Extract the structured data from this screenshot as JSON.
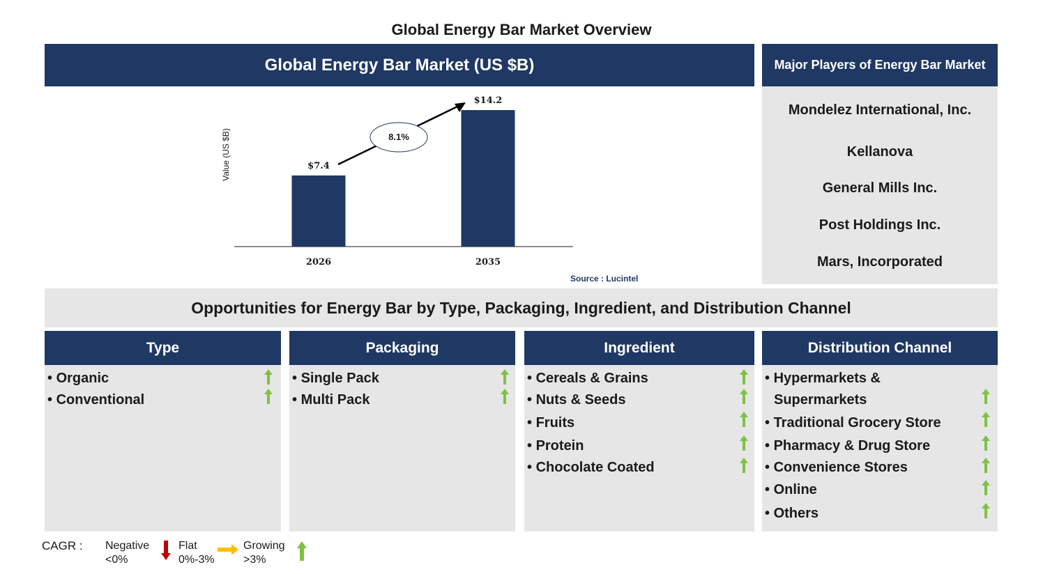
{
  "page_title": "Global Energy Bar Market Overview",
  "chart_header": "Global Energy Bar Market (US $B)",
  "chart_data": {
    "type": "bar",
    "categories": [
      "2026",
      "2035"
    ],
    "values": [
      7.4,
      14.2
    ],
    "value_labels": [
      "$7.4",
      "$14.2"
    ],
    "title": "Global Energy Bar Market (US $B)",
    "xlabel": "",
    "ylabel": "Value (US $B)",
    "ylim": [
      0,
      15
    ],
    "annotation": "8.1%",
    "grid": false,
    "bar_color": "#1f3864"
  },
  "source": "Source : Lucintel",
  "players": {
    "header": "Major Players of Energy Bar Market",
    "items": [
      "Mondelez International, Inc.",
      "Kellanova",
      "General Mills Inc.",
      "Post Holdings Inc.",
      "Mars, Incorporated"
    ]
  },
  "opportunities_title": "Opportunities for Energy Bar by Type, Packaging, Ingredient, and Distribution Channel",
  "segments": [
    {
      "title": "Type",
      "items": [
        "Organic",
        "Conventional"
      ]
    },
    {
      "title": "Packaging",
      "items": [
        "Single Pack",
        "Multi Pack"
      ]
    },
    {
      "title": "Ingredient",
      "items": [
        "Cereals & Grains",
        "Nuts & Seeds",
        "Fruits",
        "Protein",
        "Chocolate Coated"
      ]
    },
    {
      "title": "Distribution Channel",
      "items": [
        "Hypermarkets &",
        "Supermarkets",
        "Traditional Grocery Store",
        "Pharmacy & Drug Store",
        "Convenience Stores",
        "Online",
        "Others"
      ]
    }
  ],
  "legend": {
    "cagr_label": "CAGR :",
    "negative_label": "Negative",
    "negative_range": "<0%",
    "flat_label": "Flat",
    "flat_range": "0%-3%",
    "growing_label": "Growing",
    "growing_range": ">3%"
  },
  "colors": {
    "navy": "#1f3864",
    "panel_grey": "#e6e6e6",
    "growth_green": "#7dc242",
    "negative_red": "#c00000",
    "flat_yellow": "#ffc000"
  }
}
